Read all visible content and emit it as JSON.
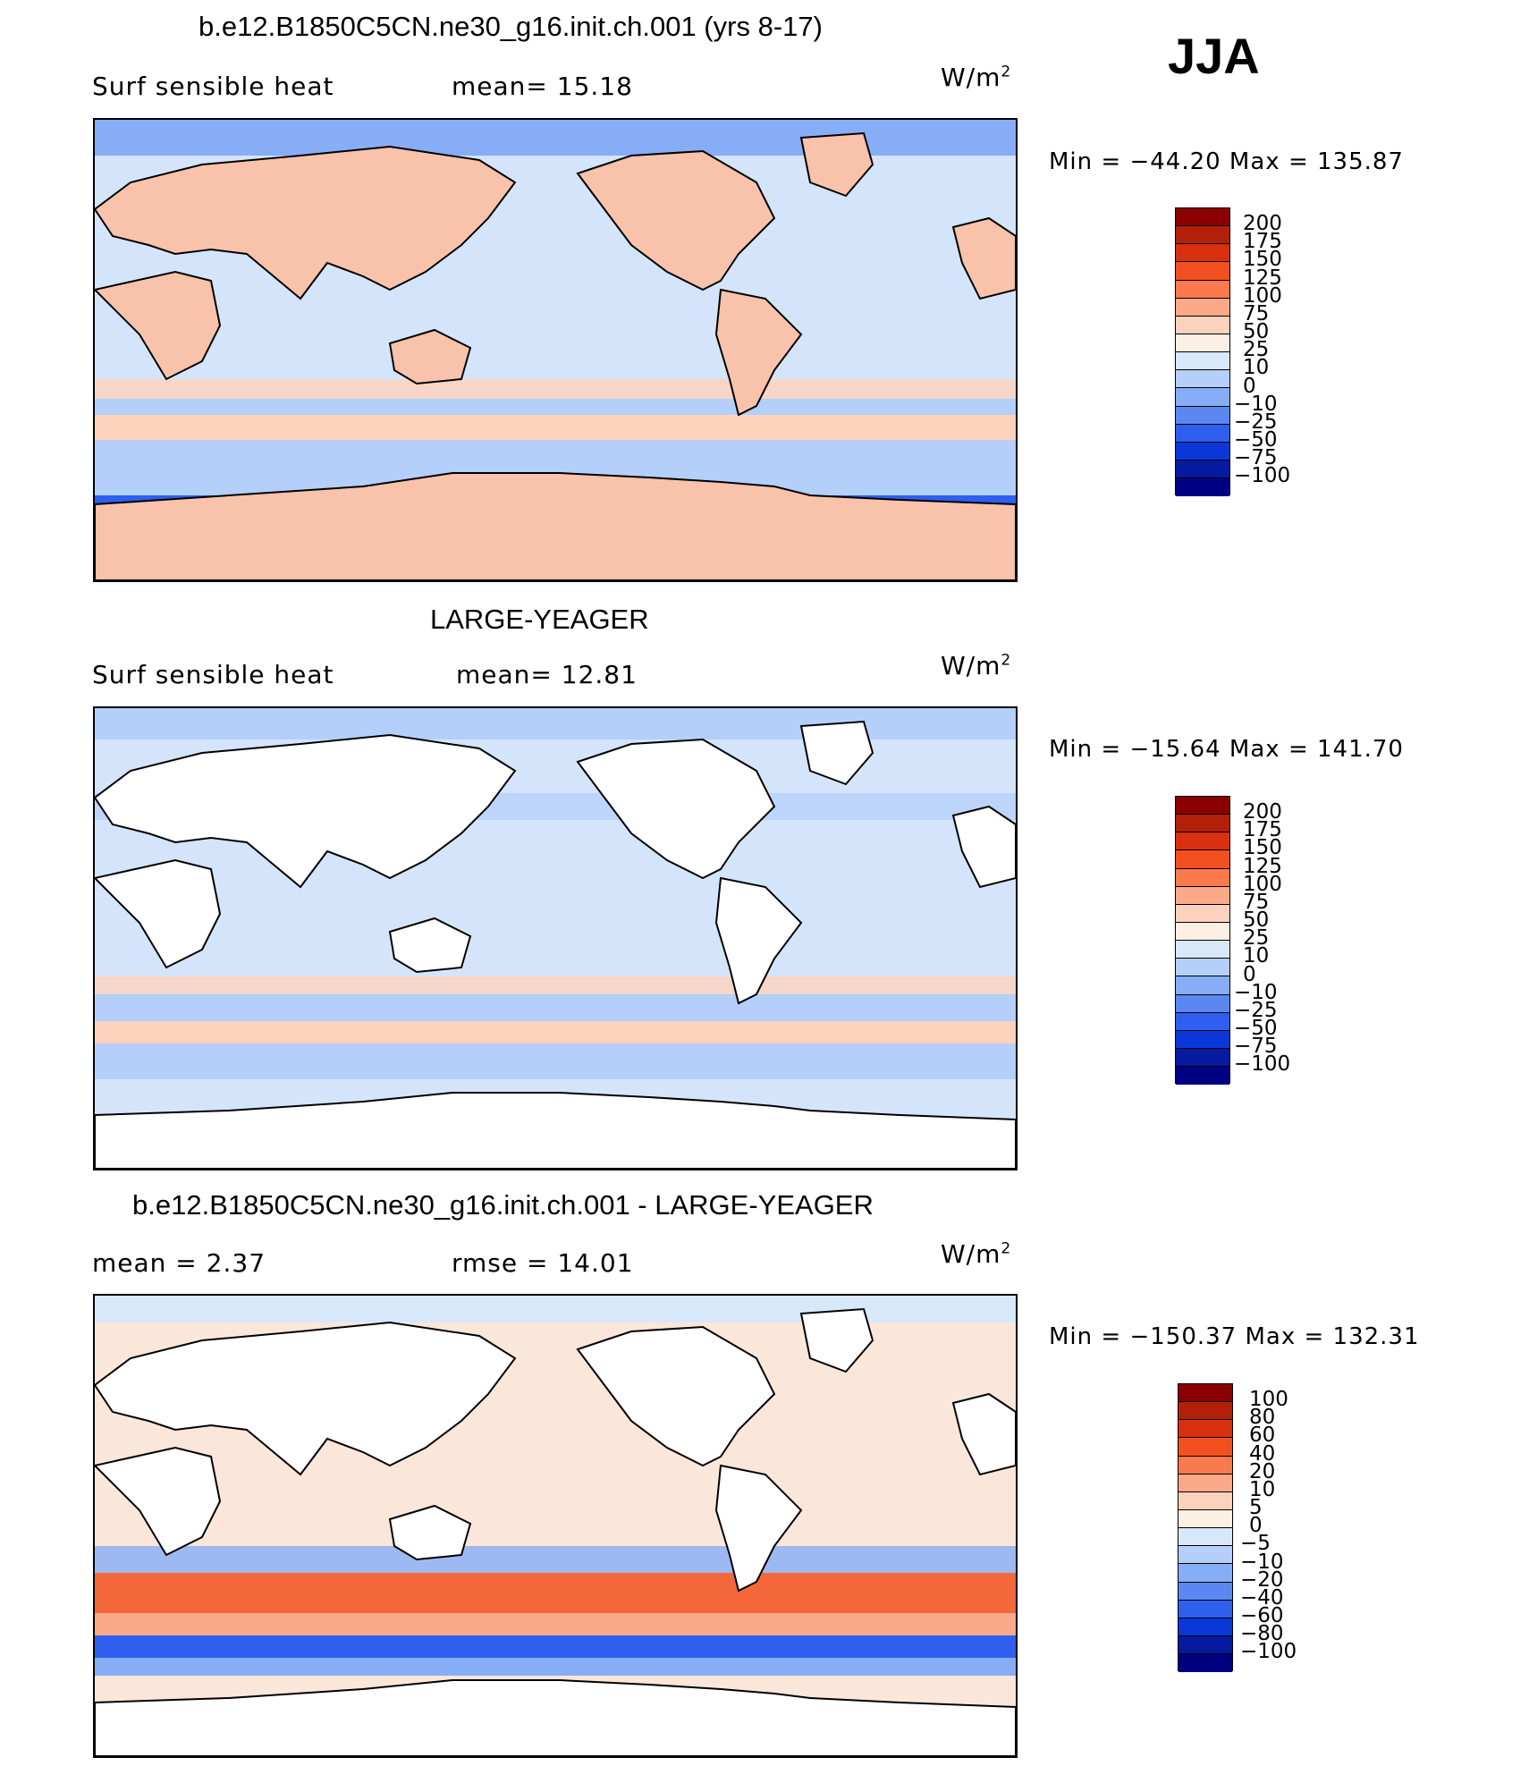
{
  "season": "JJA",
  "units_base": "W/m",
  "units_exp": "2",
  "panels": [
    {
      "title": "b.e12.B1850C5CN.ne30_g16.init.ch.001 (yrs 8-17)",
      "left_label": "Surf  sensible  heat",
      "stat_label": "mean=  15.18",
      "minmax": "Min  =  −44.20  Max  =  135.87",
      "ocean_color": "#d4e5fb",
      "land_color": "#f9c2aa",
      "colorbar_ticks": [
        "200",
        "175",
        "150",
        "125",
        "100",
        "75",
        "50",
        "25",
        "10",
        "0",
        "−10",
        "−25",
        "−50",
        "−75",
        "−100"
      ]
    },
    {
      "title": "LARGE-YEAGER",
      "left_label": "Surf  sensible  heat",
      "stat_label": "mean=  12.81",
      "minmax": "Min  =  −15.64  Max  =  141.70",
      "ocean_color": "#d4e5fb",
      "land_color": "#ffffff",
      "colorbar_ticks": [
        "200",
        "175",
        "150",
        "125",
        "100",
        "75",
        "50",
        "25",
        "10",
        "0",
        "−10",
        "−25",
        "−50",
        "−75",
        "−100"
      ]
    },
    {
      "title": "b.e12.B1850C5CN.ne30_g16.init.ch.001 - LARGE-YEAGER",
      "left_label": "mean  =     2.37",
      "stat_label": "rmse  =   14.01",
      "minmax": "Min  =  −150.37  Max  =  132.31",
      "ocean_color": "#fbe6da",
      "land_color": "#ffffff",
      "colorbar_ticks": [
        "100",
        "80",
        "60",
        "40",
        "20",
        "10",
        "5",
        "0",
        "−5",
        "−10",
        "−20",
        "−40",
        "−60",
        "−80",
        "−100"
      ]
    }
  ],
  "colorbar_colors": [
    "#8b0000",
    "#b3200a",
    "#d9300f",
    "#f2501e",
    "#fa7a4e",
    "#fca98a",
    "#fdd2bc",
    "#fcefe3",
    "#d7e8fb",
    "#b4cffa",
    "#87adf6",
    "#5a87f2",
    "#2e5fee",
    "#0a38d8",
    "#051a9e",
    "#000082"
  ]
}
